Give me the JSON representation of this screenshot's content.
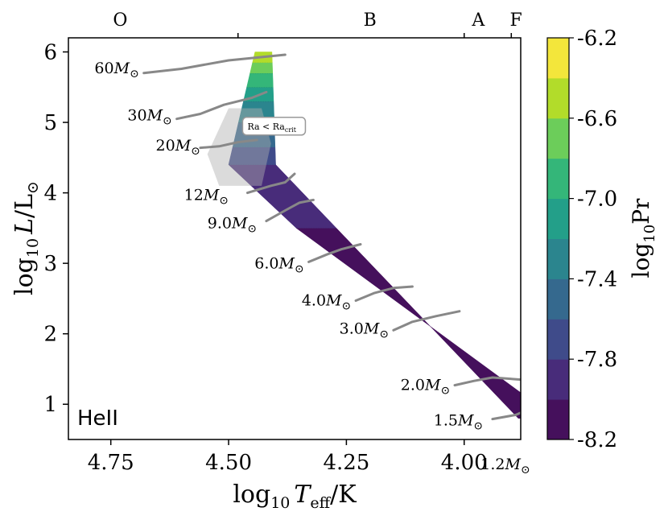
{
  "chart_data": {
    "type": "heatmap",
    "title": "",
    "panel_label": "HeII",
    "xlabel_parts": {
      "log": "log",
      "sub": "10",
      "var": "T",
      "varsub": "eff",
      "unit": "/K"
    },
    "ylabel_parts": {
      "log": "log",
      "sub": "10",
      "var": "L",
      "unit": "/L",
      "sun": "⊙"
    },
    "xlim": [
      4.84,
      3.88
    ],
    "ylim": [
      0.5,
      6.2
    ],
    "x_ticks": [
      4.75,
      4.5,
      4.25,
      4.0
    ],
    "x_tick_labels": [
      "4.75",
      "4.50",
      "4.25",
      "4.00"
    ],
    "y_ticks": [
      1,
      2,
      3,
      4,
      5,
      6
    ],
    "y_tick_labels": [
      "1",
      "2",
      "3",
      "4",
      "5",
      "6"
    ],
    "spectral_types": [
      {
        "label": "O",
        "x": 4.73
      },
      {
        "label": "B",
        "x": 4.2
      },
      {
        "label": "A",
        "x": 3.97
      },
      {
        "label": "F",
        "x": 3.89
      }
    ],
    "spectral_boundaries": [
      4.48,
      4.0,
      3.9
    ],
    "colorbar": {
      "label_parts": {
        "log": "log",
        "sub": "10",
        "name": "Pr"
      },
      "min": -8.2,
      "max": -6.2,
      "step": 0.2,
      "ticks": [
        -8.2,
        -7.8,
        -7.4,
        -7.0,
        -6.6,
        -6.2
      ],
      "tick_labels": [
        "-8.2",
        "-7.8",
        "-7.4",
        "-7.0",
        "-6.6",
        "-6.2"
      ],
      "colors": [
        "#45105c",
        "#482c7a",
        "#3f4b8a",
        "#35698e",
        "#2b858e",
        "#239f89",
        "#34b679",
        "#6ccd5a",
        "#b2dc2a",
        "#f3e63b"
      ]
    },
    "region_bands": [
      {
        "logL_range": [
          0.8,
          3.5
        ],
        "log_pr": -8.1
      },
      {
        "logL_range": [
          3.5,
          4.4
        ],
        "log_pr": -7.9
      },
      {
        "logL_range": [
          4.4,
          4.65
        ],
        "log_pr": -7.7
      },
      {
        "logL_range": [
          4.65,
          5.0
        ],
        "log_pr": -7.5
      },
      {
        "logL_range": [
          5.0,
          5.3
        ],
        "log_pr": -7.3
      },
      {
        "logL_range": [
          5.3,
          5.5
        ],
        "log_pr": -7.1
      },
      {
        "logL_range": [
          5.5,
          5.7
        ],
        "log_pr": -6.9
      },
      {
        "logL_range": [
          5.7,
          5.85
        ],
        "log_pr": -6.7
      },
      {
        "logL_range": [
          5.85,
          6.0
        ],
        "log_pr": -6.5
      }
    ],
    "subcritical_region_label": {
      "text": "Ra < Ra",
      "sub": "crit",
      "x": 4.46,
      "y": 4.9
    },
    "tracks": [
      {
        "mass": "60",
        "label_x": 4.69,
        "label_y": 5.7,
        "points": [
          [
            4.68,
            5.7
          ],
          [
            4.6,
            5.76
          ],
          [
            4.5,
            5.88
          ],
          [
            4.44,
            5.92
          ],
          [
            4.38,
            5.96
          ]
        ]
      },
      {
        "mass": "30",
        "label_x": 4.62,
        "label_y": 5.03,
        "points": [
          [
            4.61,
            5.05
          ],
          [
            4.56,
            5.12
          ],
          [
            4.51,
            5.25
          ],
          [
            4.45,
            5.35
          ],
          [
            4.42,
            5.43
          ]
        ]
      },
      {
        "mass": "20",
        "label_x": 4.56,
        "label_y": 4.6,
        "points": [
          [
            4.56,
            4.64
          ],
          [
            4.52,
            4.66
          ],
          [
            4.48,
            4.72
          ],
          [
            4.44,
            4.75
          ]
        ]
      },
      {
        "mass": "12",
        "label_x": 4.5,
        "label_y": 3.9,
        "points": [
          [
            4.46,
            4.0
          ],
          [
            4.41,
            4.1
          ],
          [
            4.38,
            4.15
          ],
          [
            4.36,
            4.27
          ]
        ]
      },
      {
        "mass": "9.0",
        "label_x": 4.44,
        "label_y": 3.5,
        "points": [
          [
            4.42,
            3.6
          ],
          [
            4.38,
            3.75
          ],
          [
            4.35,
            3.86
          ],
          [
            4.32,
            3.9
          ]
        ]
      },
      {
        "mass": "6.0",
        "label_x": 4.34,
        "label_y": 2.93,
        "points": [
          [
            4.33,
            3.02
          ],
          [
            4.29,
            3.13
          ],
          [
            4.26,
            3.2
          ],
          [
            4.22,
            3.27
          ]
        ]
      },
      {
        "mass": "4.0",
        "label_x": 4.24,
        "label_y": 2.4,
        "points": [
          [
            4.23,
            2.47
          ],
          [
            4.19,
            2.58
          ],
          [
            4.15,
            2.65
          ],
          [
            4.11,
            2.67
          ]
        ]
      },
      {
        "mass": "3.0",
        "label_x": 4.16,
        "label_y": 2.0,
        "points": [
          [
            4.15,
            2.05
          ],
          [
            4.11,
            2.17
          ],
          [
            4.06,
            2.25
          ],
          [
            4.01,
            2.32
          ]
        ]
      },
      {
        "mass": "2.0",
        "label_x": 4.03,
        "label_y": 1.2,
        "points": [
          [
            4.02,
            1.27
          ],
          [
            3.98,
            1.33
          ],
          [
            3.94,
            1.38
          ],
          [
            3.88,
            1.35
          ]
        ]
      },
      {
        "mass": "1.5",
        "label_x": 3.96,
        "label_y": 0.7,
        "points": [
          [
            3.94,
            0.79
          ],
          [
            3.89,
            0.85
          ],
          [
            3.87,
            0.91
          ],
          [
            3.86,
            0.94
          ]
        ]
      },
      {
        "mass": "1.2",
        "label_x": 3.86,
        "label_y": 0.08,
        "points": []
      }
    ],
    "mass_label_unit": "M",
    "mass_label_sun": "⊙"
  }
}
